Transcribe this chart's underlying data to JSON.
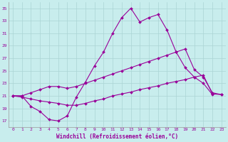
{
  "xlabel": "Windchill (Refroidissement éolien,°C)",
  "background_color": "#c8eded",
  "line_color": "#990099",
  "grid_color": "#aad4d4",
  "xlim": [
    -0.5,
    23.5
  ],
  "ylim": [
    16.0,
    36.0
  ],
  "yticks": [
    17,
    19,
    21,
    23,
    25,
    27,
    29,
    31,
    33,
    35
  ],
  "xticks": [
    0,
    1,
    2,
    3,
    4,
    5,
    6,
    7,
    8,
    9,
    10,
    11,
    12,
    13,
    14,
    15,
    16,
    17,
    18,
    19,
    20,
    21,
    22,
    23
  ],
  "series": [
    {
      "x": [
        0,
        1,
        2,
        3,
        4,
        5,
        6,
        7,
        8,
        9,
        10,
        11,
        12,
        13,
        14,
        15,
        16,
        17,
        18,
        19,
        20,
        21,
        22
      ],
      "y": [
        21.0,
        21.0,
        19.3,
        18.5,
        17.2,
        17.0,
        17.8,
        20.8,
        23.2,
        25.8,
        28.0,
        31.0,
        33.5,
        35.0,
        32.8,
        33.5,
        34.0,
        31.5,
        28.0,
        25.5,
        24.0,
        23.0,
        21.2
      ]
    },
    {
      "x": [
        0,
        1,
        2,
        3,
        4,
        5,
        6,
        7,
        8,
        9,
        10,
        11,
        12,
        13,
        14,
        15,
        16,
        17,
        18,
        19,
        20,
        21,
        22,
        23
      ],
      "y": [
        21.0,
        21.0,
        21.5,
        22.0,
        22.5,
        22.5,
        22.2,
        22.5,
        23.0,
        23.5,
        24.0,
        24.5,
        25.0,
        25.5,
        26.0,
        26.5,
        27.0,
        27.5,
        28.0,
        28.5,
        25.2,
        24.0,
        21.5,
        21.2
      ]
    },
    {
      "x": [
        0,
        1,
        2,
        3,
        4,
        5,
        6,
        7,
        8,
        9,
        10,
        11,
        12,
        13,
        14,
        15,
        16,
        17,
        18,
        19,
        20,
        21,
        22,
        23
      ],
      "y": [
        21.0,
        20.8,
        20.5,
        20.2,
        20.0,
        19.8,
        19.5,
        19.5,
        19.8,
        20.2,
        20.5,
        21.0,
        21.3,
        21.6,
        22.0,
        22.3,
        22.6,
        23.0,
        23.3,
        23.6,
        24.0,
        24.3,
        21.3,
        21.2
      ]
    }
  ]
}
